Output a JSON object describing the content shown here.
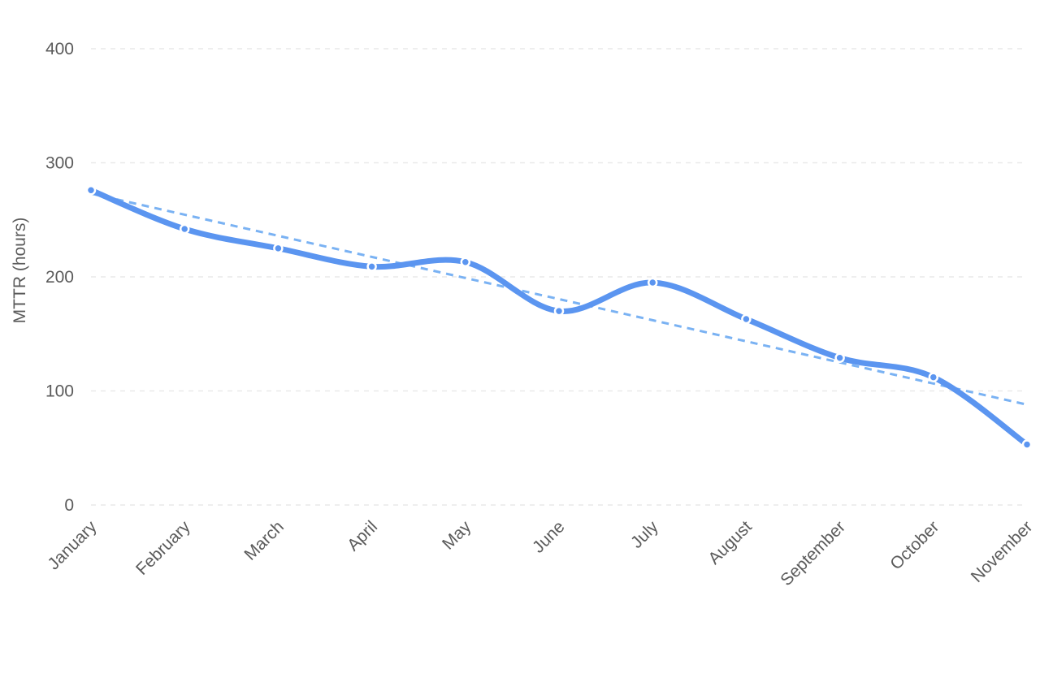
{
  "chart_data": {
    "type": "line",
    "title": "",
    "xlabel": "",
    "ylabel": "MTTR (hours)",
    "categories": [
      "January",
      "February",
      "March",
      "April",
      "May",
      "June",
      "July",
      "August",
      "September",
      "October",
      "November"
    ],
    "series": [
      {
        "values": [
          276,
          242,
          225,
          209,
          213,
          170,
          195,
          163,
          129,
          112,
          53
        ]
      }
    ],
    "trendline": {
      "style": "dashed",
      "start": 273,
      "end": 88
    },
    "ylim": [
      0,
      400
    ],
    "yticks": [
      0,
      100,
      200,
      300,
      400
    ],
    "grid": true,
    "legend": "none",
    "colors": {
      "line": "#5b95f0",
      "trend": "#7ab2f3",
      "grid": "#e9e9e9",
      "text": "#5b5b5b"
    }
  }
}
